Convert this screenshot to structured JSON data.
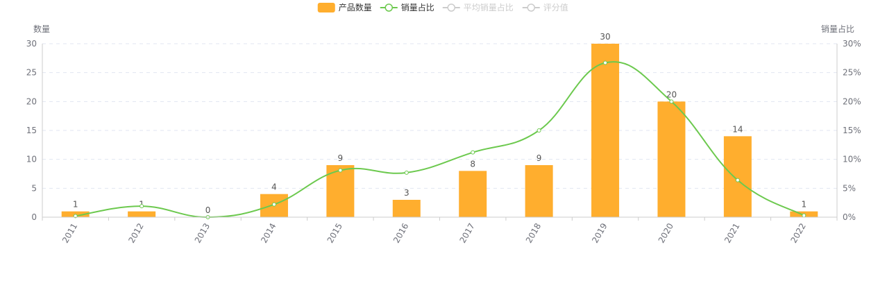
{
  "chart_data": {
    "type": "bar",
    "categories": [
      "2011",
      "2012",
      "2013",
      "2014",
      "2015",
      "2016",
      "2017",
      "2018",
      "2019",
      "2020",
      "2021",
      "2022"
    ],
    "series": [
      {
        "name": "产品数量",
        "type": "bar",
        "axis": "left",
        "color": "#FFAE2E",
        "values": [
          1,
          1,
          0,
          4,
          9,
          3,
          8,
          9,
          30,
          20,
          14,
          1
        ],
        "show_labels": true
      },
      {
        "name": "销量占比",
        "type": "line",
        "axis": "right",
        "smooth": true,
        "color": "#6CC94E",
        "values": [
          0.2,
          1.9,
          0.0,
          2.2,
          8.1,
          7.7,
          11.2,
          15.0,
          26.7,
          20.0,
          6.4,
          0.3
        ]
      }
    ],
    "legend": {
      "position": "top-center",
      "items": [
        {
          "name": "产品数量",
          "symbol": "rect",
          "color": "#FFAE2E",
          "active": true
        },
        {
          "name": "销量占比",
          "symbol": "line",
          "color": "#6CC94E",
          "active": true
        },
        {
          "name": "平均销量占比",
          "symbol": "line",
          "color": "#cccccc",
          "active": false
        },
        {
          "name": "评分值",
          "symbol": "line",
          "color": "#cccccc",
          "active": false
        }
      ]
    },
    "y_left": {
      "label": "数量",
      "min": 0,
      "max": 30,
      "interval": 5,
      "ticks": [
        "0",
        "5",
        "10",
        "15",
        "20",
        "25",
        "30"
      ]
    },
    "y_right": {
      "label": "销量占比",
      "min": 0,
      "max": 30,
      "interval": 5,
      "ticks": [
        "0%",
        "5%",
        "10%",
        "15%",
        "20%",
        "25%",
        "30%"
      ]
    },
    "x_axis": {
      "label_rotation": "-60deg"
    },
    "grid": {
      "horizontal": true,
      "style": "dashed"
    },
    "colors": {
      "axis_text": "#6e7079",
      "grid": "#e0e6f1",
      "axis_line": "#cccccc"
    }
  }
}
